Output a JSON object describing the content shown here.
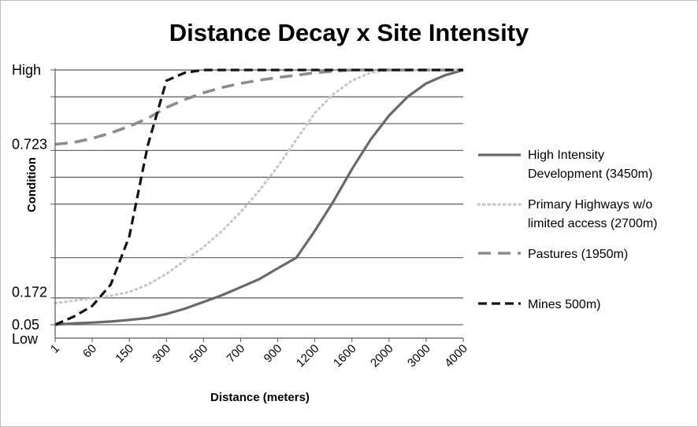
{
  "chart_data": {
    "type": "line",
    "title": "Distance Decay x Site Intensity",
    "xlabel": "Distance (meters)",
    "ylabel": "Condition",
    "ylim": [
      0,
      1
    ],
    "y_tick_labels": [
      {
        "value": 1.0,
        "label": "High"
      },
      {
        "value": 0.723,
        "label": "0.723"
      },
      {
        "value": 0.172,
        "label": "0.172"
      },
      {
        "value": 0.05,
        "label": "0.05"
      },
      {
        "value": 0.0,
        "label": "Low"
      }
    ],
    "y_gridlines": [
      0.05,
      0.15,
      0.3,
      0.5,
      0.6,
      0.7,
      0.8,
      0.9,
      1.0
    ],
    "y_minor_ticks": [
      0.05,
      0.15,
      0.3,
      0.5,
      0.6,
      0.7,
      0.8,
      0.9,
      1.0
    ],
    "x_tick_labels": [
      "1",
      "60",
      "150",
      "300",
      "500",
      "700",
      "900",
      "1200",
      "1600",
      "2000",
      "3000",
      "4000"
    ],
    "x": [
      1,
      30,
      60,
      100,
      150,
      200,
      300,
      400,
      500,
      600,
      700,
      800,
      900,
      1000,
      1200,
      1400,
      1600,
      1800,
      2000,
      2500,
      3000,
      3500,
      4000
    ],
    "grid": true,
    "legend_position": "right",
    "series": [
      {
        "name": "High Intensity Development (3450m)",
        "style": "solid",
        "color": "#696969",
        "values": [
          0.05,
          0.055,
          0.058,
          0.062,
          0.068,
          0.075,
          0.09,
          0.11,
          0.135,
          0.16,
          0.19,
          0.22,
          0.26,
          0.3,
          0.4,
          0.51,
          0.63,
          0.74,
          0.83,
          0.9,
          0.95,
          0.98,
          1.0
        ]
      },
      {
        "name": "Primary Highways w/o limited access (2700m)",
        "style": "dotted",
        "color": "#c8c8c8",
        "values": [
          0.13,
          0.14,
          0.148,
          0.158,
          0.172,
          0.2,
          0.24,
          0.29,
          0.34,
          0.4,
          0.47,
          0.55,
          0.64,
          0.74,
          0.84,
          0.91,
          0.96,
          0.99,
          1.0,
          1.0,
          1.0,
          1.0,
          1.0
        ]
      },
      {
        "name": "Pastures (1950m)",
        "style": "dashed",
        "color": "#8c8c8c",
        "values": [
          0.723,
          0.73,
          0.745,
          0.765,
          0.79,
          0.82,
          0.86,
          0.89,
          0.915,
          0.935,
          0.95,
          0.962,
          0.972,
          0.98,
          0.99,
          0.995,
          1.0,
          1.0,
          1.0,
          1.0,
          1.0,
          1.0,
          1.0
        ]
      },
      {
        "name": "Mines 500m)",
        "style": "dashed",
        "color": "#141414",
        "values": [
          0.05,
          0.08,
          0.12,
          0.2,
          0.38,
          0.72,
          0.96,
          0.99,
          1.0,
          1.0,
          1.0,
          1.0,
          1.0,
          1.0,
          1.0,
          1.0,
          1.0,
          1.0,
          1.0,
          1.0,
          1.0,
          1.0,
          1.0
        ]
      }
    ]
  }
}
